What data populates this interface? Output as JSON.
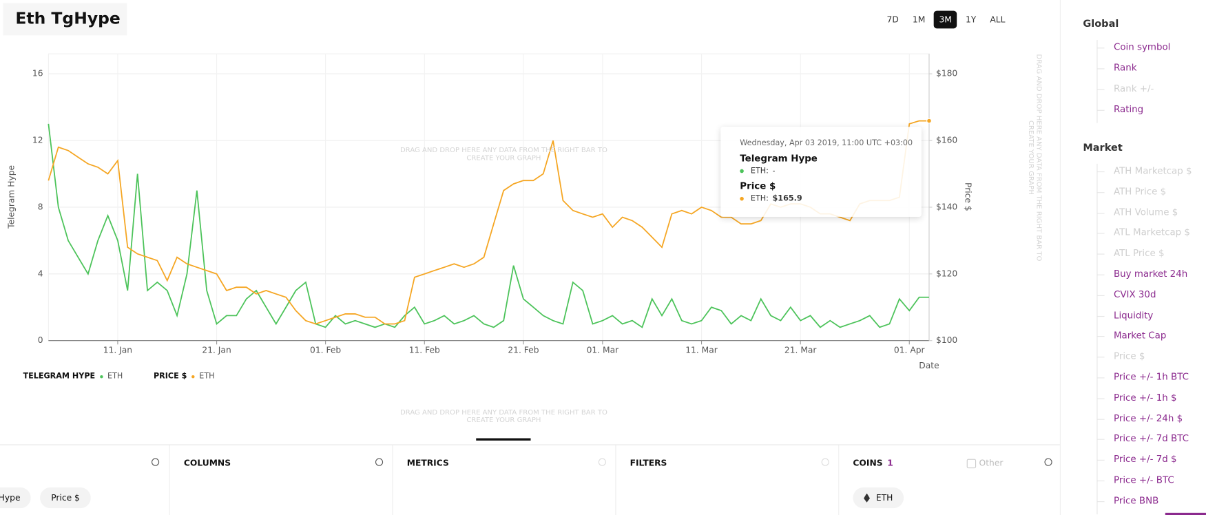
{
  "header": {
    "title": "Eth TgHype",
    "ranges": [
      {
        "label": "7D",
        "active": false
      },
      {
        "label": "1M",
        "active": false
      },
      {
        "label": "3M",
        "active": true
      },
      {
        "label": "1Y",
        "active": false
      },
      {
        "label": "ALL",
        "active": false
      }
    ]
  },
  "drop_hint": "DRAG AND DROP HERE ANY DATA FROM THE RIGHT BAR TO CREATE YOUR GRAPH",
  "chart_data": {
    "type": "line",
    "y_label": "Telegram Hype",
    "y2_label": "Price $",
    "x_label": "Date",
    "x": [
      "2019-01-04",
      "2019-01-05",
      "2019-01-06",
      "2019-01-07",
      "2019-01-08",
      "2019-01-09",
      "2019-01-10",
      "2019-01-11",
      "2019-01-12",
      "2019-01-13",
      "2019-01-14",
      "2019-01-15",
      "2019-01-16",
      "2019-01-17",
      "2019-01-18",
      "2019-01-19",
      "2019-01-20",
      "2019-01-21",
      "2019-01-22",
      "2019-01-23",
      "2019-01-24",
      "2019-01-25",
      "2019-01-26",
      "2019-01-27",
      "2019-01-28",
      "2019-01-29",
      "2019-01-30",
      "2019-01-31",
      "2019-02-01",
      "2019-02-02",
      "2019-02-03",
      "2019-02-04",
      "2019-02-05",
      "2019-02-06",
      "2019-02-07",
      "2019-02-08",
      "2019-02-09",
      "2019-02-10",
      "2019-02-11",
      "2019-02-12",
      "2019-02-13",
      "2019-02-14",
      "2019-02-15",
      "2019-02-16",
      "2019-02-17",
      "2019-02-18",
      "2019-02-19",
      "2019-02-20",
      "2019-02-21",
      "2019-02-22",
      "2019-02-23",
      "2019-02-24",
      "2019-02-25",
      "2019-02-26",
      "2019-02-27",
      "2019-02-28",
      "2019-03-01",
      "2019-03-02",
      "2019-03-03",
      "2019-03-04",
      "2019-03-05",
      "2019-03-06",
      "2019-03-07",
      "2019-03-08",
      "2019-03-09",
      "2019-03-10",
      "2019-03-11",
      "2019-03-12",
      "2019-03-13",
      "2019-03-14",
      "2019-03-15",
      "2019-03-16",
      "2019-03-17",
      "2019-03-18",
      "2019-03-19",
      "2019-03-20",
      "2019-03-21",
      "2019-03-22",
      "2019-03-23",
      "2019-03-24",
      "2019-03-25",
      "2019-03-26",
      "2019-03-27",
      "2019-03-28",
      "2019-03-29",
      "2019-03-30",
      "2019-03-31",
      "2019-04-01",
      "2019-04-02",
      "2019-04-03"
    ],
    "xlim": [
      "2019-01-04",
      "2019-04-03"
    ],
    "xticks": [
      {
        "value": "2019-01-11",
        "label": "11. Jan"
      },
      {
        "value": "2019-01-21",
        "label": "21. Jan"
      },
      {
        "value": "2019-02-01",
        "label": "01. Feb"
      },
      {
        "value": "2019-02-11",
        "label": "11. Feb"
      },
      {
        "value": "2019-02-21",
        "label": "21. Feb"
      },
      {
        "value": "2019-03-01",
        "label": "01. Mar"
      },
      {
        "value": "2019-03-11",
        "label": "11. Mar"
      },
      {
        "value": "2019-03-21",
        "label": "21. Mar"
      },
      {
        "value": "2019-04-01",
        "label": "01. Apr"
      }
    ],
    "ylim": [
      0,
      17.2
    ],
    "yticks": [
      0,
      4,
      8,
      12,
      16
    ],
    "y2lim": [
      100,
      186
    ],
    "y2ticks": [
      {
        "value": 100,
        "label": "$100"
      },
      {
        "value": 120,
        "label": "$120"
      },
      {
        "value": 140,
        "label": "$140"
      },
      {
        "value": 160,
        "label": "$160"
      },
      {
        "value": 180,
        "label": "$180"
      }
    ],
    "grid": true,
    "series": [
      {
        "group": "TELEGRAM HYPE",
        "name": "ETH",
        "color": "#4cc35a",
        "axis": "y",
        "values": [
          13,
          8,
          6,
          5,
          4,
          6,
          7.5,
          6,
          3,
          10,
          3,
          3.5,
          3,
          1.5,
          4,
          9,
          3,
          1,
          1.5,
          1.5,
          2.5,
          3,
          2,
          1,
          2,
          3,
          3.5,
          1,
          0.8,
          1.5,
          1,
          1.2,
          1,
          0.8,
          1,
          0.8,
          1.5,
          2,
          1,
          1.2,
          1.5,
          1,
          1.2,
          1.5,
          1,
          0.8,
          1.2,
          4.5,
          2.5,
          2,
          1.5,
          1.2,
          1,
          3.5,
          3,
          1,
          1.2,
          1.5,
          1,
          1.2,
          0.8,
          2.5,
          1.5,
          2.5,
          1.2,
          1,
          1.2,
          2,
          1.8,
          1,
          1.5,
          1.2,
          2.5,
          1.5,
          1.2,
          2,
          1.2,
          1.5,
          0.8,
          1.2,
          0.8,
          1,
          1.2,
          1.5,
          0.8,
          1,
          2.5,
          1.8,
          2.6,
          2.6
        ]
      },
      {
        "group": "PRICE $",
        "name": "ETH",
        "color": "#f5a623",
        "axis": "y2",
        "values": [
          148,
          158,
          157,
          155,
          153,
          152,
          150,
          154,
          128,
          126,
          125,
          124,
          118,
          125,
          123,
          122,
          121,
          120,
          115,
          116,
          116,
          114,
          115,
          114,
          113,
          109,
          106,
          105,
          106,
          107,
          108,
          108,
          107,
          107,
          105,
          105,
          106,
          119,
          120,
          121,
          122,
          123,
          122,
          123,
          125,
          135,
          145,
          147,
          148,
          148,
          150,
          160,
          142,
          139,
          138,
          137,
          138,
          134,
          137,
          136,
          134,
          131,
          128,
          138,
          139,
          138,
          140,
          139,
          137,
          137,
          135,
          135,
          136,
          141,
          140,
          141,
          141,
          140,
          138,
          138,
          137,
          136,
          141,
          142,
          142,
          142,
          143,
          165,
          165.9,
          165.9
        ]
      }
    ]
  },
  "tooltip": {
    "date": "Wednesday, Apr 03 2019, 11:00 UTC +03:00",
    "groups": [
      {
        "title": "Telegram Hype",
        "label": "ETH:",
        "value": "-"
      },
      {
        "title": "Price $",
        "label": "ETH:",
        "value": "$165.9"
      }
    ]
  },
  "panels": [
    {
      "title": "",
      "chips": [
        "Telegram Hype",
        "Price $"
      ]
    },
    {
      "title": "COLUMNS",
      "chips": []
    },
    {
      "title": "METRICS",
      "chips": []
    },
    {
      "title": "FILTERS",
      "chips": []
    },
    {
      "title": "COINS",
      "count": "1",
      "checkbox": "Other",
      "chips": [
        "ETH"
      ]
    }
  ],
  "sidebar": [
    {
      "title": "Global",
      "items": [
        {
          "label": "Coin symbol",
          "disabled": false
        },
        {
          "label": "Rank",
          "disabled": false
        },
        {
          "label": "Rank +/-",
          "disabled": true
        },
        {
          "label": "Rating",
          "disabled": false
        }
      ]
    },
    {
      "title": "Market",
      "items": [
        {
          "label": "ATH Marketcap $",
          "disabled": true
        },
        {
          "label": "ATH Price $",
          "disabled": true
        },
        {
          "label": "ATH Volume $",
          "disabled": true
        },
        {
          "label": "ATL Marketcap $",
          "disabled": true
        },
        {
          "label": "ATL Price $",
          "disabled": true
        },
        {
          "label": "Buy market 24h",
          "disabled": false
        },
        {
          "label": "CVIX 30d",
          "disabled": false
        },
        {
          "label": "Liquidity",
          "disabled": false
        },
        {
          "label": "Market Cap",
          "disabled": false
        },
        {
          "label": "Price $",
          "disabled": true
        },
        {
          "label": "Price +/- 1h BTC",
          "disabled": false
        },
        {
          "label": "Price +/- 1h $",
          "disabled": false
        },
        {
          "label": "Price +/- 24h $",
          "disabled": false
        },
        {
          "label": "Price +/- 7d BTC",
          "disabled": false
        },
        {
          "label": "Price +/- 7d $",
          "disabled": false
        },
        {
          "label": "Price +/- BTC",
          "disabled": false
        },
        {
          "label": "Price BNB",
          "disabled": false
        }
      ]
    }
  ]
}
